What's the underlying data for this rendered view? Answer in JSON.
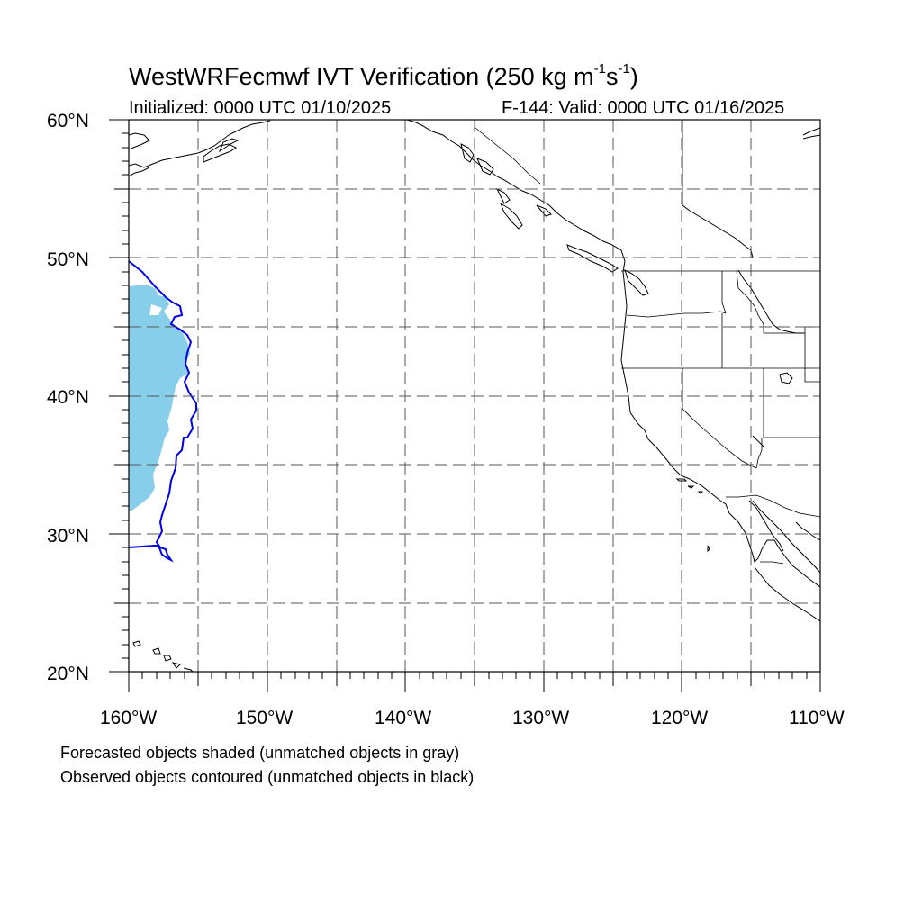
{
  "title": {
    "prefix": "WestWRFecmwf IVT Verification (250 kg m",
    "sup1": "-1",
    "mid": "s",
    "sup2": "-1",
    "suffix": ")"
  },
  "subtitle_left": "Initialized: 0000 UTC 01/10/2025",
  "subtitle_right": "F-144: Valid: 0000 UTC 01/16/2025",
  "lat_labels": [
    "60°N",
    "50°N",
    "40°N",
    "30°N",
    "20°N"
  ],
  "lon_labels": [
    "160°W",
    "150°W",
    "140°W",
    "130°W",
    "120°W",
    "110°W"
  ],
  "notes": [
    "Forecasted objects shaded (unmatched objects in gray)",
    "Observed objects contoured (unmatched objects in black)"
  ],
  "map": {
    "lon_range": [
      -160,
      -110
    ],
    "lat_range": [
      20,
      60
    ],
    "grid_spacing_deg": 5,
    "grid": true,
    "colors": {
      "forecast_object": "#87ceeb",
      "observed_object": "#0000ee",
      "coastline": "#000000",
      "grid": "#555555"
    }
  }
}
